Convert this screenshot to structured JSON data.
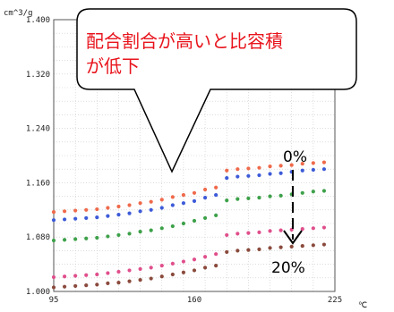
{
  "chart_data": {
    "type": "scatter",
    "y_unit": "cm^3/g",
    "x_unit": "℃",
    "xlim": [
      95,
      225
    ],
    "ylim": [
      1.0,
      1.4
    ],
    "x_ticks": [
      "95",
      "160",
      "225"
    ],
    "y_ticks": [
      "1.000",
      "1.080",
      "1.160",
      "1.240",
      "1.320",
      "1.400"
    ],
    "grid": true,
    "series": [
      {
        "color": "#ef6a4b",
        "x": [
          95,
          100,
          105,
          110,
          115,
          120,
          125,
          130,
          135,
          140,
          145,
          150,
          155,
          160,
          165,
          170,
          175,
          180,
          185,
          190,
          195,
          200,
          205,
          210,
          215,
          220
        ],
        "y": [
          1.117,
          1.118,
          1.119,
          1.12,
          1.121,
          1.123,
          1.125,
          1.127,
          1.13,
          1.132,
          1.135,
          1.139,
          1.142,
          1.145,
          1.15,
          1.153,
          1.178,
          1.18,
          1.181,
          1.182,
          1.184,
          1.185,
          1.186,
          1.188,
          1.189,
          1.19
        ]
      },
      {
        "color": "#3d5bd8",
        "x": [
          95,
          100,
          105,
          110,
          115,
          120,
          125,
          130,
          135,
          140,
          145,
          150,
          155,
          160,
          165,
          170,
          175,
          180,
          185,
          190,
          195,
          200,
          205,
          210,
          215,
          220
        ],
        "y": [
          1.105,
          1.106,
          1.107,
          1.108,
          1.109,
          1.111,
          1.113,
          1.115,
          1.118,
          1.12,
          1.123,
          1.127,
          1.13,
          1.133,
          1.138,
          1.142,
          1.167,
          1.169,
          1.17,
          1.171,
          1.173,
          1.174,
          1.176,
          1.178,
          1.179,
          1.18
        ]
      },
      {
        "color": "#3ea14a",
        "x": [
          95,
          100,
          105,
          110,
          115,
          120,
          125,
          130,
          135,
          140,
          145,
          150,
          155,
          160,
          165,
          170,
          175,
          180,
          185,
          190,
          195,
          200,
          205,
          210,
          215,
          220
        ],
        "y": [
          1.075,
          1.076,
          1.077,
          1.078,
          1.079,
          1.081,
          1.083,
          1.085,
          1.088,
          1.09,
          1.093,
          1.096,
          1.1,
          1.104,
          1.108,
          1.112,
          1.134,
          1.136,
          1.137,
          1.138,
          1.14,
          1.141,
          1.143,
          1.145,
          1.147,
          1.148
        ]
      },
      {
        "color": "#e04f8c",
        "x": [
          95,
          100,
          105,
          110,
          115,
          120,
          125,
          130,
          135,
          140,
          145,
          150,
          155,
          160,
          165,
          170,
          175,
          180,
          185,
          190,
          195,
          200,
          205,
          210,
          215,
          220
        ],
        "y": [
          1.021,
          1.022,
          1.023,
          1.024,
          1.025,
          1.027,
          1.029,
          1.031,
          1.033,
          1.035,
          1.038,
          1.041,
          1.044,
          1.047,
          1.051,
          1.055,
          1.083,
          1.085,
          1.086,
          1.087,
          1.089,
          1.09,
          1.091,
          1.092,
          1.093,
          1.094
        ]
      },
      {
        "color": "#8a4a3c",
        "x": [
          95,
          100,
          105,
          110,
          115,
          120,
          125,
          130,
          135,
          140,
          145,
          150,
          155,
          160,
          165,
          170,
          175,
          180,
          185,
          190,
          195,
          200,
          205,
          210,
          215,
          220
        ],
        "y": [
          1.006,
          1.007,
          1.008,
          1.009,
          1.01,
          1.012,
          1.013,
          1.015,
          1.017,
          1.019,
          1.022,
          1.025,
          1.028,
          1.031,
          1.035,
          1.038,
          1.058,
          1.06,
          1.061,
          1.062,
          1.064,
          1.065,
          1.066,
          1.067,
          1.068,
          1.069
        ]
      }
    ],
    "annotations": {
      "callout": [
        "配合割合が高いと比容積",
        "が低下"
      ],
      "top_label": "0%",
      "bottom_label": "20%"
    }
  }
}
